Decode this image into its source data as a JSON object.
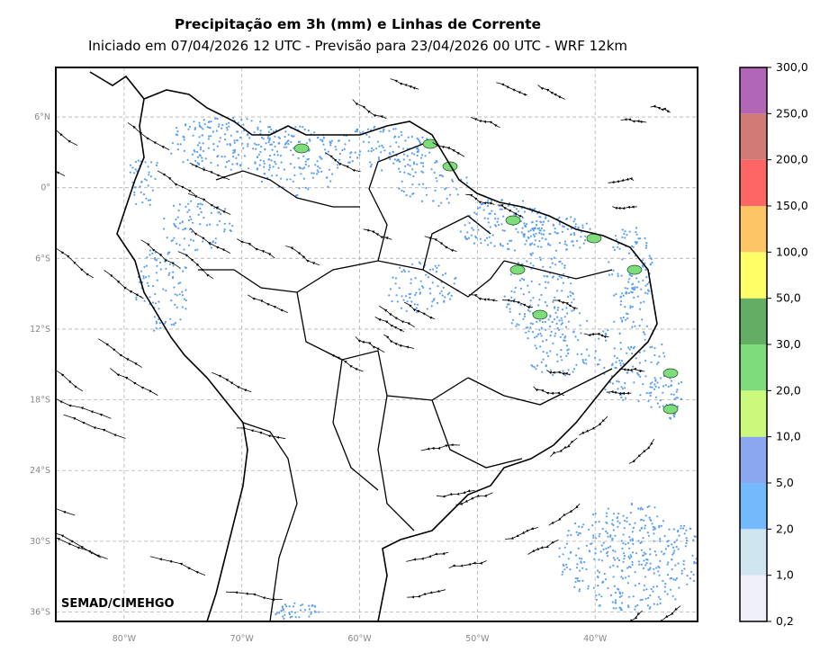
{
  "title": "Precipitação em 3h (mm) e Linhas de Corrente",
  "subtitle": "Iniciado em 07/04/2026 12 UTC - Previsão para 23/04/2026 00 UTC - WRF 12km",
  "credit": "SEMAD/CIMEHGO",
  "lat_ticks": [
    {
      "label": "6°N",
      "lat": 6
    },
    {
      "label": "0°",
      "lat": 0
    },
    {
      "label": "6°S",
      "lat": -6
    },
    {
      "label": "12°S",
      "lat": -12
    },
    {
      "label": "18°S",
      "lat": -18
    },
    {
      "label": "24°S",
      "lat": -24
    },
    {
      "label": "30°S",
      "lat": -30
    },
    {
      "label": "36°S",
      "lat": -36
    }
  ],
  "lon_ticks": [
    {
      "label": "80°W",
      "lon": -80
    },
    {
      "label": "70°W",
      "lon": -70
    },
    {
      "label": "60°W",
      "lon": -60
    },
    {
      "label": "50°W",
      "lon": -50
    },
    {
      "label": "40°W",
      "lon": -40
    }
  ],
  "extent": {
    "lon_min": -85.8,
    "lon_max": -31.3,
    "lat_min": -36.8,
    "lat_max": 10.2
  },
  "colorbar": {
    "bounds": [
      "0,2",
      "1,0",
      "2,0",
      "5,0",
      "10,0",
      "20,0",
      "30,0",
      "50,0",
      "100,0",
      "150,0",
      "200,0",
      "250,0",
      "300,0"
    ],
    "colors": [
      "#efeffa",
      "#cfe6f0",
      "#74b9fb",
      "#8ba7f0",
      "#cbf97c",
      "#7fdc7d",
      "#63ae64",
      "#fffe66",
      "#fec565",
      "#fe6565",
      "#d27a76",
      "#b266b6"
    ]
  },
  "colors": {
    "grid": "#b0b0b0",
    "border": "#000000",
    "streamline": "#000000",
    "rain_dot": "#5b9ff2",
    "rain_heavy": "#7fdc7d"
  }
}
